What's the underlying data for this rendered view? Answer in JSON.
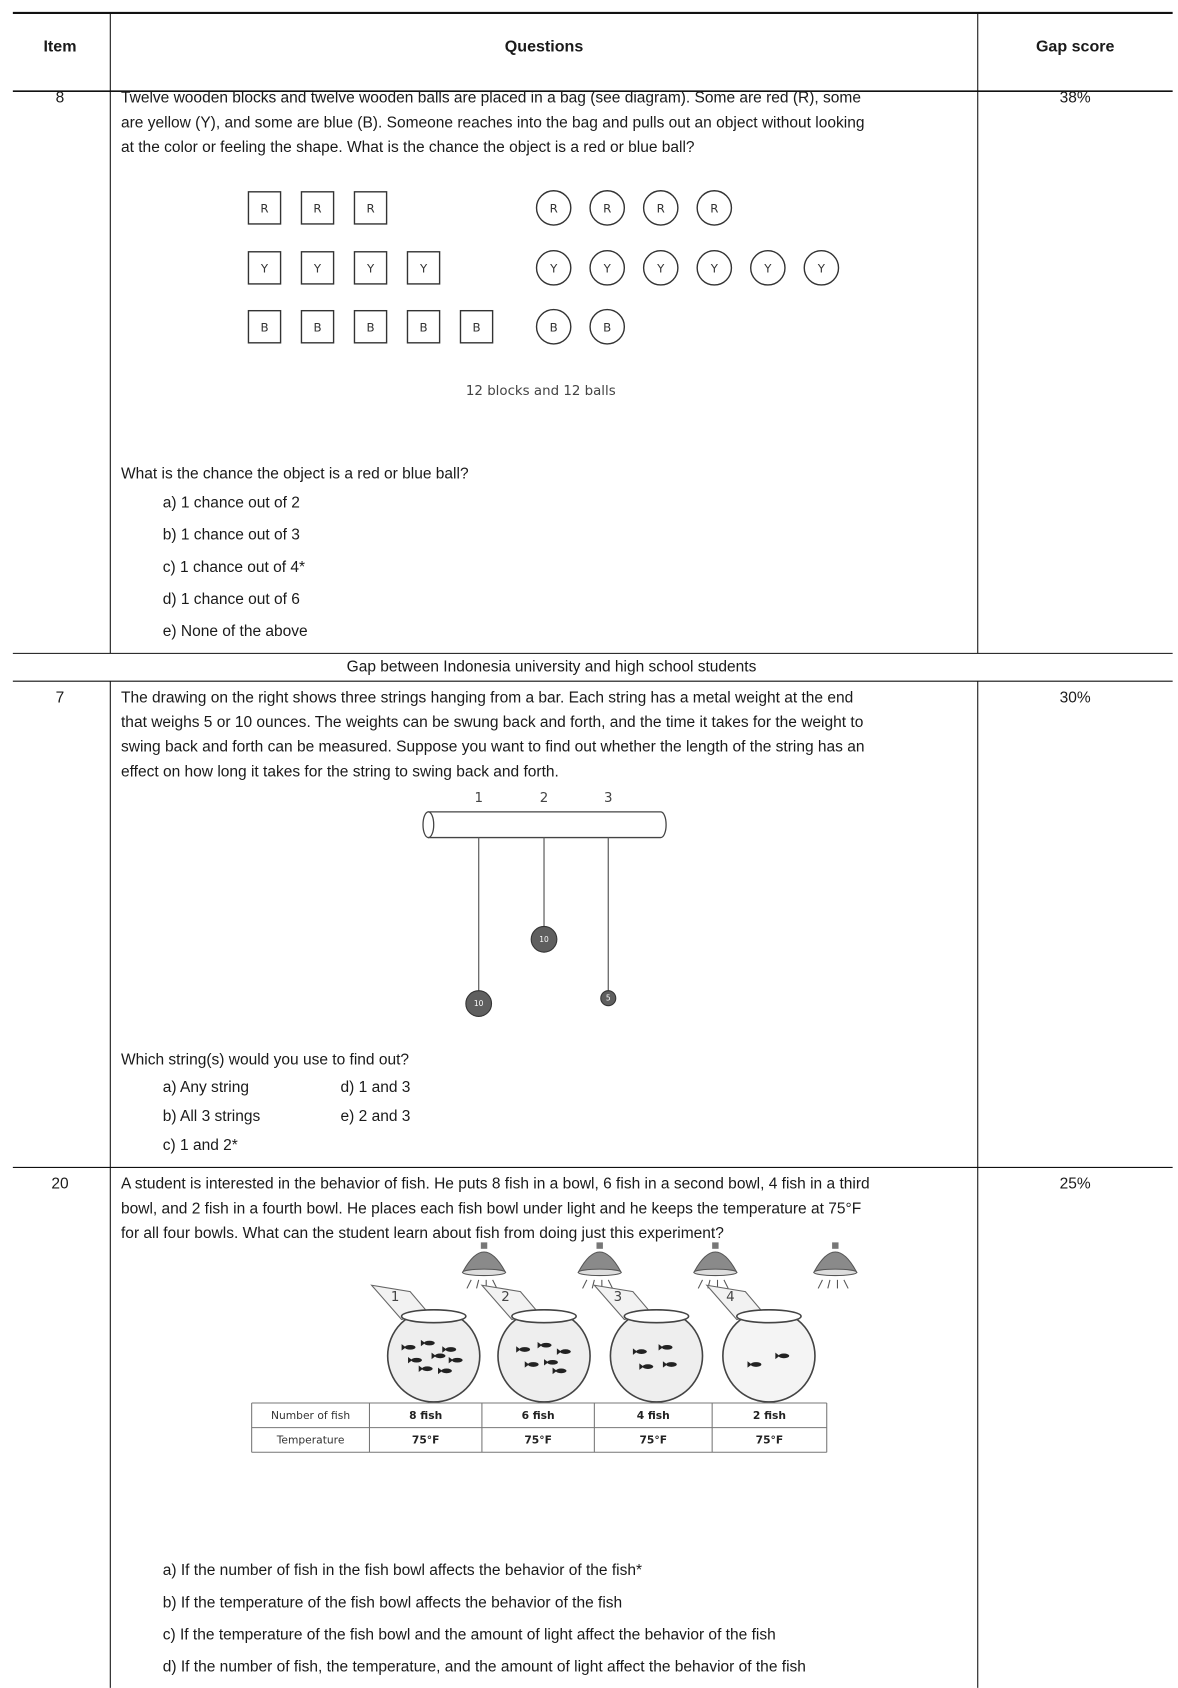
{
  "table": {
    "headers": {
      "item": "Item",
      "questions": "Questions",
      "gap_score": "Gap score"
    },
    "section_label": "Gap between Indonesia university and high school students",
    "rows": [
      {
        "item": "8",
        "question_lines": [
          "Twelve wooden blocks and twelve wooden balls are placed in a bag (see diagram). Some are red (R), some",
          "are yellow (Y), and some are blue (B). Someone reaches into the bag and pulls out an object without looking",
          "at the color or feeling the shape. What is the chance the object is a red or blue ball?"
        ],
        "diagram": {
          "blocks": [
            [
              "R",
              "R",
              "R"
            ],
            [
              "Y",
              "Y",
              "Y",
              "Y"
            ],
            [
              "B",
              "B",
              "B",
              "B",
              "B"
            ]
          ],
          "balls": [
            [
              "R",
              "R",
              "R",
              "R"
            ],
            [
              "Y",
              "Y",
              "Y",
              "Y",
              "Y",
              "Y"
            ],
            [
              "B",
              "B"
            ]
          ],
          "caption": "12 blocks and 12 balls"
        },
        "prompt": "What is the chance the object is a red or blue ball?",
        "options": [
          "a)  1 chance out of 2",
          "b)  1 chance out of 3",
          "c)  1 chance out of 4*",
          "d)  1 chance out of 6",
          "e)  None of the above"
        ],
        "gap_score": "38%"
      },
      {
        "item": "7",
        "question_lines": [
          "The drawing on the right shows three strings hanging from a bar.  Each string has a metal weight at the end",
          "that weighs 5 or 10 ounces. The weights can be swung back and forth, and the time it takes for the weight to",
          "swing back and forth can be measured. Suppose you want to find out whether the length of the string has an",
          "effect on how long it takes for the string to swing back and forth."
        ],
        "diagram": {
          "string_labels": [
            "1",
            "2",
            "3"
          ],
          "weights": [
            "10",
            "10",
            "5"
          ]
        },
        "prompt": "Which string(s) would you use to find out?",
        "options": [
          "a)  Any string",
          "b)  All 3 strings",
          "c)  1 and 2*",
          "d)  1 and 3",
          "e)  2 and 3"
        ],
        "gap_score": "30%"
      },
      {
        "item": "20",
        "question_lines": [
          "A student is interested in the behavior of fish. He puts 8 fish in a bowl, 6 fish in a second bowl, 4 fish in a third",
          "bowl, and 2 fish in a fourth bowl. He places each fish bowl under light and he keeps the temperature at 75°F",
          "for all four bowls. What can the student learn about fish from doing just this experiment?"
        ],
        "diagram": {
          "bowl_labels": [
            "1",
            "2",
            "3",
            "4"
          ],
          "table": [
            [
              "Number of fish",
              "8 fish",
              "6 fish",
              "4 fish",
              "2 fish"
            ],
            [
              "Temperature",
              "75°F",
              "75°F",
              "75°F",
              "75°F"
            ]
          ]
        },
        "options": [
          "a)  If the number of fish in the fish bowl affects the behavior of the fish*",
          "b)  If the temperature of the fish bowl affects the behavior of the fish",
          "c)  If the temperature of the fish bowl and the amount of light affect the behavior of the fish",
          "d)  If the number of fish, the temperature, and the amount of light affect the behavior of the fish"
        ],
        "gap_score": "25%"
      }
    ]
  }
}
